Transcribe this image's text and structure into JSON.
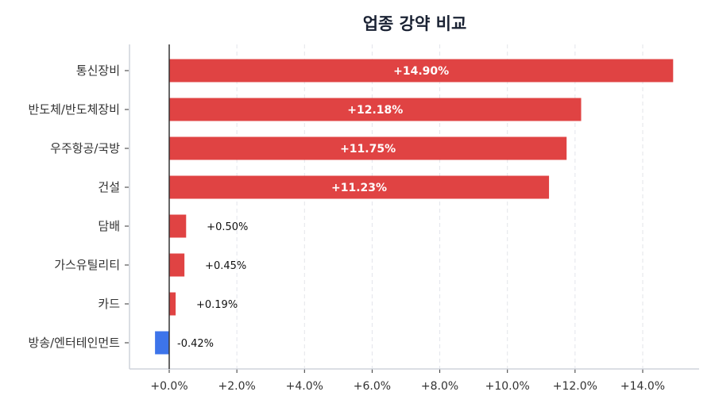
{
  "chart_data": {
    "type": "bar",
    "orientation": "horizontal",
    "title": "업종 강약 비교",
    "categories": [
      "통신장비",
      "반도체/반도체장비",
      "우주항공/국방",
      "건설",
      "담배",
      "가스유틸리티",
      "카드",
      "방송/엔터테인먼트"
    ],
    "values": [
      14.9,
      12.18,
      11.75,
      11.23,
      0.5,
      0.45,
      0.19,
      -0.42
    ],
    "data_labels": [
      "+14.90%",
      "+12.18%",
      "+11.75%",
      "+11.23%",
      "+0.50%",
      "+0.45%",
      "+0.19%",
      "-0.42%"
    ],
    "xlim": [
      -1.2,
      15.7
    ],
    "xticks": [
      0,
      2,
      4,
      6,
      8,
      10,
      12,
      14
    ],
    "xtick_labels": [
      "+0.0%",
      "+2.0%",
      "+4.0%",
      "+6.0%",
      "+8.0%",
      "+10.0%",
      "+12.0%",
      "+14.0%"
    ],
    "xlabel": "",
    "ylabel": "",
    "grid": "vertical dashed",
    "colors": {
      "positive": "#e04343",
      "negative": "#3d74ea",
      "title": "#1a2233",
      "text": "#333333",
      "axis": "#cfd3dc",
      "zero_line": "#333333"
    }
  }
}
